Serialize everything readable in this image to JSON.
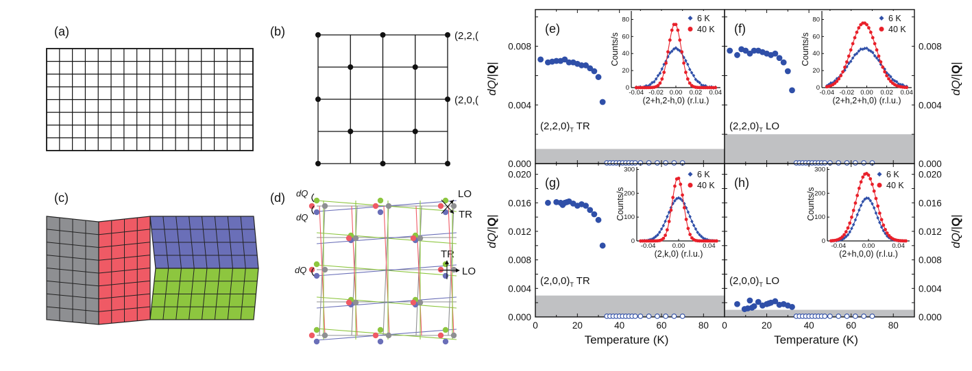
{
  "figure": {
    "panel_labels": {
      "a": "(a)",
      "b": "(b)",
      "c": "(c)",
      "d": "(d)",
      "e": "(e)",
      "f": "(f)",
      "g": "(g)",
      "h": "(h)"
    },
    "panel_b": {
      "label_top": "(2,2,(",
      "label_mid": "(2,0,("
    },
    "panel_c": {
      "colors": {
        "gray": "#8e8f92",
        "red": "#ef5a65",
        "blue": "#6a6fb8",
        "green": "#8dc63f"
      }
    },
    "panel_d": {
      "dq1": "dQ",
      "dq2": "dQ",
      "dq3": "dQ",
      "lo1": "LO",
      "tr1": "TR",
      "tr2": "TR",
      "lo2": "LO"
    },
    "colors": {
      "data_blue": "#2f4fa8",
      "data_red": "#e8202a",
      "shade": "#c0c1c3"
    },
    "y_axis_label": "dQ/|Q|",
    "x_axis_label": "Temperature (K)"
  },
  "chart_data": [
    {
      "id": "e",
      "type": "scatter",
      "title": "(e)",
      "annotation": "(2,2,0)T TR",
      "xlabel": "Temperature (K)",
      "ylabel": "dQ/|Q|",
      "xlim": [
        0,
        90
      ],
      "ylim": [
        0,
        0.0105
      ],
      "yticks": [
        "0.000",
        "0.004",
        "0.008"
      ],
      "xticks": [
        "0",
        "20",
        "40",
        "60",
        "80"
      ],
      "shaded_below": 0.001,
      "x": [
        2.5,
        6,
        8,
        10,
        12,
        14,
        16,
        18,
        20,
        22,
        24,
        26,
        28,
        30,
        32
      ],
      "y": [
        0.0071,
        0.0069,
        0.00695,
        0.007,
        0.007,
        0.0071,
        0.0069,
        0.0069,
        0.0068,
        0.0067,
        0.0067,
        0.0065,
        0.0063,
        0.0059,
        0.0042
      ],
      "open_x": [
        34,
        35.5,
        37,
        38.5,
        40,
        41.5,
        43,
        44.5,
        46,
        47.5,
        50,
        54,
        58,
        62,
        66,
        70
      ],
      "open_y": 0.0,
      "inset": {
        "xlabel": "(2+h,2-h,0) (r.l.u.)",
        "ylabel": "Counts/s",
        "xlim": [
          -0.045,
          0.045
        ],
        "ylim": [
          0,
          90
        ],
        "xticks": [
          "-0.04",
          "-0.02",
          "0.00",
          "0.02",
          "0.04"
        ],
        "yticks": [
          "0",
          "20",
          "40",
          "60",
          "80"
        ],
        "series": [
          {
            "name": "6 K",
            "amplitude": 46,
            "center": 0.0,
            "sigma": 0.0115,
            "color": "#2f4fa8",
            "marker": "diamond"
          },
          {
            "name": "40 K",
            "amplitude": 75,
            "center": -0.001,
            "sigma": 0.0065,
            "color": "#e8202a",
            "marker": "circle"
          }
        ]
      }
    },
    {
      "id": "f",
      "type": "scatter",
      "title": "(f)",
      "annotation": "(2,2,0)T LO",
      "xlabel": "Temperature (K)",
      "ylabel": "dQ/|Q|",
      "xlim": [
        0,
        90
      ],
      "ylim": [
        0,
        0.0105
      ],
      "yticks": [
        "0.000",
        "0.004",
        "0.008"
      ],
      "xticks": [
        "0",
        "20",
        "40",
        "60",
        "80"
      ],
      "shaded_below": 0.002,
      "x": [
        2.5,
        6,
        8,
        10,
        12,
        14,
        16,
        18,
        20,
        22,
        24,
        26,
        28,
        30,
        32
      ],
      "y": [
        0.0077,
        0.0074,
        0.0078,
        0.0077,
        0.0075,
        0.0077,
        0.0077,
        0.0076,
        0.0075,
        0.0074,
        0.0075,
        0.0072,
        0.0069,
        0.0063,
        0.005
      ],
      "open_x": [
        34,
        35.5,
        37,
        38.5,
        40,
        41.5,
        43,
        44.5,
        46,
        47.5,
        50,
        54,
        58,
        62,
        66,
        70
      ],
      "open_y": 0.0,
      "inset": {
        "xlabel": "(2+h,2+h,0) (r.l.u.)",
        "ylabel": "Counts/s",
        "xlim": [
          -0.045,
          0.045
        ],
        "ylim": [
          0,
          90
        ],
        "xticks": [
          "-0.04",
          "-0.02",
          "0.00",
          "0.02",
          "0.04"
        ],
        "yticks": [
          "0",
          "20",
          "40",
          "60",
          "80"
        ],
        "series": [
          {
            "name": "6 K",
            "amplitude": 46,
            "center": -0.002,
            "sigma": 0.016,
            "color": "#2f4fa8",
            "marker": "diamond"
          },
          {
            "name": "40 K",
            "amplitude": 76,
            "center": -0.003,
            "sigma": 0.0125,
            "color": "#e8202a",
            "marker": "circle"
          }
        ]
      }
    },
    {
      "id": "g",
      "type": "scatter",
      "title": "(g)",
      "annotation": "(2,0,0)T TR",
      "xlabel": "Temperature (K)",
      "ylabel": "dQ/|Q|",
      "xlim": [
        0,
        90
      ],
      "ylim": [
        0,
        0.0215
      ],
      "yticks": [
        "0.000",
        "0.004",
        "0.008",
        "0.012",
        "0.016",
        "0.020"
      ],
      "xticks": [
        "0",
        "20",
        "40",
        "60",
        "80"
      ],
      "shaded_below": 0.003,
      "x": [
        6,
        10,
        12,
        13,
        14,
        15,
        16,
        18,
        20,
        22,
        24,
        26,
        28,
        30,
        32
      ],
      "y": [
        0.016,
        0.0161,
        0.016,
        0.0157,
        0.016,
        0.0161,
        0.0162,
        0.0159,
        0.0156,
        0.0158,
        0.0156,
        0.015,
        0.0144,
        0.0136,
        0.01
      ],
      "open_x": [
        34,
        35.5,
        37,
        38.5,
        40,
        41.5,
        43,
        44.5,
        46,
        47.5,
        50,
        54,
        58,
        62,
        66,
        70
      ],
      "open_y": 0.0,
      "inset": {
        "xlabel": "(2,k,0) (r.l.u.)",
        "ylabel": "Counts/s",
        "xlim": [
          -0.055,
          0.055
        ],
        "ylim": [
          0,
          310
        ],
        "xticks": [
          "-0.04",
          "0.00",
          "0.04"
        ],
        "yticks": [
          "0",
          "100",
          "200",
          "300"
        ],
        "series": [
          {
            "name": "6 K",
            "amplitude": 180,
            "center": 0.0,
            "sigma": 0.014,
            "color": "#2f4fa8",
            "marker": "diamond"
          },
          {
            "name": "40 K",
            "amplitude": 265,
            "center": -0.001,
            "sigma": 0.0075,
            "color": "#e8202a",
            "marker": "circle"
          }
        ]
      }
    },
    {
      "id": "h",
      "type": "scatter",
      "title": "(h)",
      "annotation": "(2,0,0)T LO",
      "xlabel": "Temperature (K)",
      "ylabel": "dQ/|Q|",
      "xlim": [
        0,
        90
      ],
      "ylim": [
        0,
        0.0215
      ],
      "yticks": [
        "0.000",
        "0.004",
        "0.008",
        "0.012",
        "0.016",
        "0.020"
      ],
      "xticks": [
        "0",
        "20",
        "40",
        "60",
        "80"
      ],
      "shaded_below": 0.001,
      "x": [
        6,
        9.5,
        11,
        12,
        13,
        14,
        16,
        18,
        20,
        21,
        22,
        24,
        26,
        28,
        30,
        32
      ],
      "y": [
        0.0018,
        0.0011,
        0.0012,
        0.0023,
        0.0013,
        0.0015,
        0.0021,
        0.0016,
        0.0018,
        0.0019,
        0.002,
        0.0022,
        0.0017,
        0.0018,
        0.0016,
        0.0014
      ],
      "open_x": [
        34,
        35.5,
        37,
        38.5,
        40,
        41.5,
        43,
        44.5,
        46,
        47.5,
        50,
        54,
        58,
        62,
        66,
        70
      ],
      "open_y": 0.0,
      "inset": {
        "xlabel": "(2+h,0,0) (r.l.u.)",
        "ylabel": "Counts/s",
        "xlim": [
          -0.055,
          0.055
        ],
        "ylim": [
          0,
          310
        ],
        "xticks": [
          "-0.04",
          "0.00",
          "0.04"
        ],
        "yticks": [
          "0",
          "100",
          "200",
          "300"
        ],
        "series": [
          {
            "name": "6 K",
            "amplitude": 180,
            "center": -0.002,
            "sigma": 0.013,
            "color": "#2f4fa8",
            "marker": "diamond"
          },
          {
            "name": "40 K",
            "amplitude": 283,
            "center": -0.003,
            "sigma": 0.0135,
            "color": "#e8202a",
            "marker": "circle"
          }
        ]
      }
    }
  ]
}
